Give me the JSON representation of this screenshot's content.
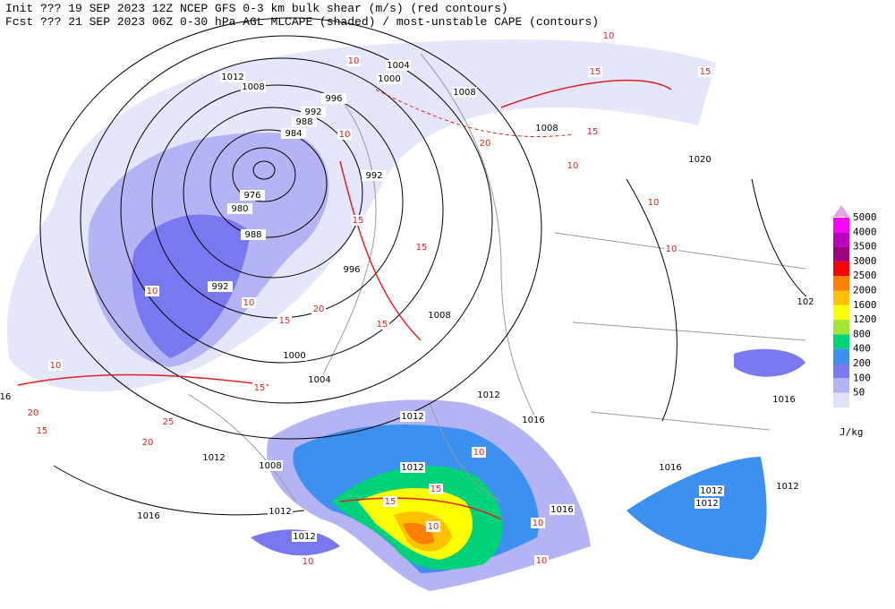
{
  "header": {
    "line1": "Init  ??? 19 SEP 2023 12Z  NCEP GFS 0-3 km bulk shear (m/s) (red contours)",
    "line2": "Fcst ??? 21 SEP 2023 06Z  0-30 hPa AGL MLCAPE (shaded) / most-unstable CAPE (contours)"
  },
  "legend": {
    "unit": "J/kg",
    "items": [
      {
        "label": "5000",
        "color": "#ff00ff"
      },
      {
        "label": "4000",
        "color": "#c000c0"
      },
      {
        "label": "3500",
        "color": "#a00080"
      },
      {
        "label": "3000",
        "color": "#ff0000"
      },
      {
        "label": "2500",
        "color": "#ff7f00"
      },
      {
        "label": "2000",
        "color": "#ffc000"
      },
      {
        "label": "1600",
        "color": "#ffff00"
      },
      {
        "label": "1200",
        "color": "#a0e632"
      },
      {
        "label": "800",
        "color": "#00d27a"
      },
      {
        "label": "400",
        "color": "#3c91f0"
      },
      {
        "label": "200",
        "color": "#7878f0"
      },
      {
        "label": "100",
        "color": "#b4b4f5"
      },
      {
        "label": "50",
        "color": "#e1e1fa"
      }
    ]
  },
  "pressure_labels": [
    "1004",
    "1000",
    "1012",
    "1008",
    "996",
    "1008",
    "992",
    "988",
    "984",
    "1008",
    "1020",
    "992",
    "976",
    "980",
    "988",
    "996",
    "992",
    "1008",
    "1000",
    "1004",
    "1012",
    "1012",
    "1016",
    "1016",
    "16",
    "1012",
    "1008",
    "1012",
    "1016",
    "1012",
    "1012",
    "1012",
    "1012",
    "1016",
    "1016",
    "1012",
    "102"
  ],
  "shear_labels": [
    "10",
    "15",
    "10",
    "15",
    "15",
    "20",
    "10",
    "10",
    "15",
    "15",
    "10",
    "10",
    "15",
    "15",
    "20",
    "10",
    "20",
    "25",
    "20",
    "15",
    "10",
    "10",
    "15",
    "15",
    "10",
    "10",
    "10",
    "10",
    "10",
    "15"
  ]
}
